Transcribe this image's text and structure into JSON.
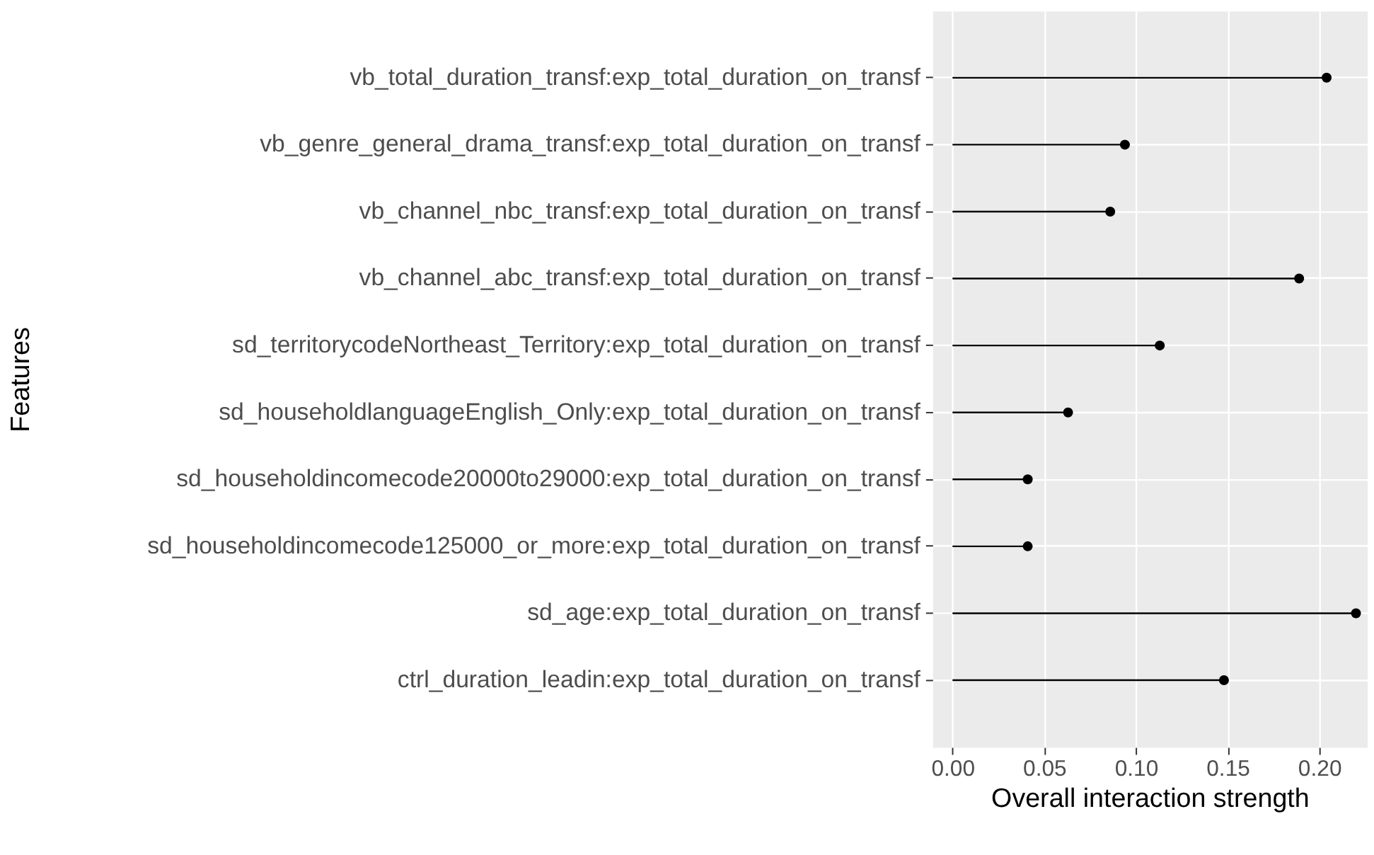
{
  "chart_data": {
    "type": "lollipop",
    "orientation": "horizontal",
    "xlabel": "Overall interaction strength",
    "ylabel": "Features",
    "categories": [
      "vb_total_duration_transf:exp_total_duration_on_transf",
      "vb_genre_general_drama_transf:exp_total_duration_on_transf",
      "vb_channel_nbc_transf:exp_total_duration_on_transf",
      "vb_channel_abc_transf:exp_total_duration_on_transf",
      "sd_territorycodeNortheast_Territory:exp_total_duration_on_transf",
      "sd_householdlanguageEnglish_Only:exp_total_duration_on_transf",
      "sd_householdincomecode20000to29000:exp_total_duration_on_transf",
      "sd_householdincomecode125000_or_more:exp_total_duration_on_transf",
      "sd_age:exp_total_duration_on_transf",
      "ctrl_duration_leadin:exp_total_duration_on_transf"
    ],
    "values": [
      0.204,
      0.094,
      0.086,
      0.189,
      0.113,
      0.063,
      0.041,
      0.041,
      0.22,
      0.148
    ],
    "color": "#000000",
    "marker": "circle",
    "xlim": [
      -0.011,
      0.226
    ],
    "xticks": [
      {
        "value": 0,
        "label": "0.00"
      },
      {
        "value": 0.05,
        "label": "0.05"
      },
      {
        "value": 0.1,
        "label": "0.10"
      },
      {
        "value": 0.15,
        "label": "0.15"
      },
      {
        "value": 0.2,
        "label": "0.20"
      }
    ],
    "grid": true
  }
}
